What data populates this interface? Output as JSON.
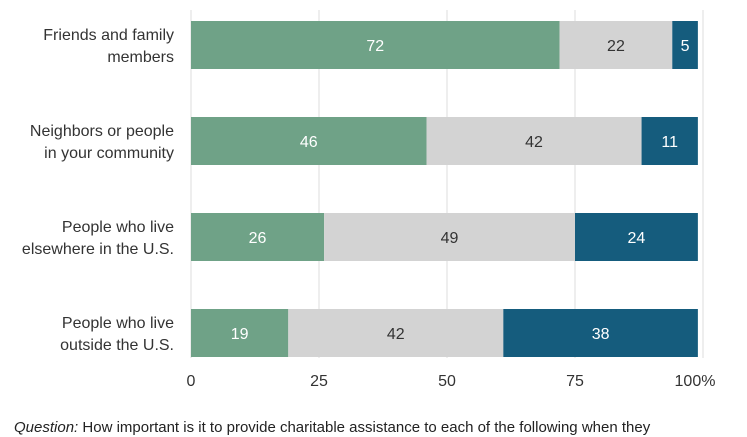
{
  "chart_data": {
    "type": "bar",
    "orientation": "horizontal",
    "stacked": true,
    "categories": [
      "Friends and family members",
      "Neighbors or people in your community",
      "People who live elsewhere in the U.S.",
      "People who live outside the U.S."
    ],
    "category_lines": [
      [
        "Friends and family",
        "members"
      ],
      [
        "Neighbors or people",
        "in your community"
      ],
      [
        "People who live",
        "elsewhere in the U.S."
      ],
      [
        "People who live",
        "outside the U.S."
      ]
    ],
    "series": [
      {
        "values": [
          72,
          46,
          26,
          19
        ],
        "color": "#6fa287",
        "label_color": "#ffffff"
      },
      {
        "values": [
          22,
          42,
          49,
          42
        ],
        "color": "#d3d3d3",
        "label_color": "#333333"
      },
      {
        "values": [
          5,
          11,
          24,
          38
        ],
        "color": "#155c7d",
        "label_color": "#ffffff"
      }
    ],
    "xlim": [
      0,
      100
    ],
    "xticks": [
      0,
      25,
      50,
      75,
      100
    ],
    "xtick_labels": [
      "0",
      "25",
      "50",
      "75",
      "100%"
    ],
    "grid": true,
    "grid_color": "#dddddd",
    "xlabel": "",
    "ylabel": "",
    "title": ""
  },
  "footnote": {
    "label": "Question:",
    "text": "How important is it to provide charitable assistance to each of the following when they"
  }
}
